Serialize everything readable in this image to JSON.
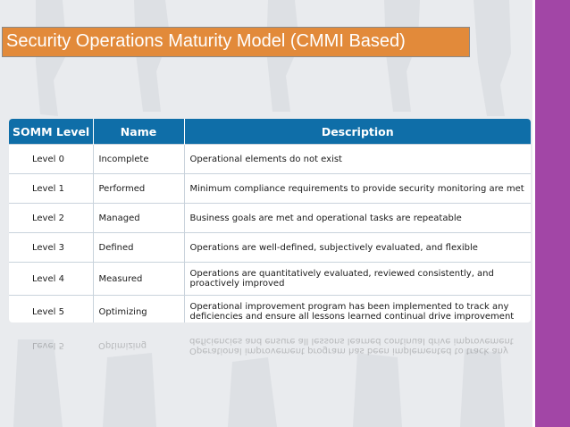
{
  "slide": {
    "title": "Security Operations Maturity Model (CMMI Based)",
    "accent_color": "#a246a6",
    "title_bg_color": "#e28a3a",
    "header_color": "#0f6ea8"
  },
  "table": {
    "headers": [
      "SOMM Level",
      "Name",
      "Description"
    ],
    "rows": [
      {
        "level": "Level 0",
        "name": "Incomplete",
        "description": "Operational elements do not exist"
      },
      {
        "level": "Level 1",
        "name": "Performed",
        "description": "Minimum compliance requirements to provide security monitoring are met"
      },
      {
        "level": "Level 2",
        "name": "Managed",
        "description": "Business goals are met and operational tasks are repeatable"
      },
      {
        "level": "Level 3",
        "name": "Defined",
        "description": "Operations are well-defined, subjectively evaluated, and flexible"
      },
      {
        "level": "Level 4",
        "name": "Measured",
        "description": "Operations are quantitatively evaluated, reviewed consistently, and proactively improved"
      },
      {
        "level": "Level 5",
        "name": "Optimizing",
        "description": "Operational improvement program has been implemented to track any deficiencies and ensure all lessons learned continual drive improvement"
      }
    ]
  }
}
